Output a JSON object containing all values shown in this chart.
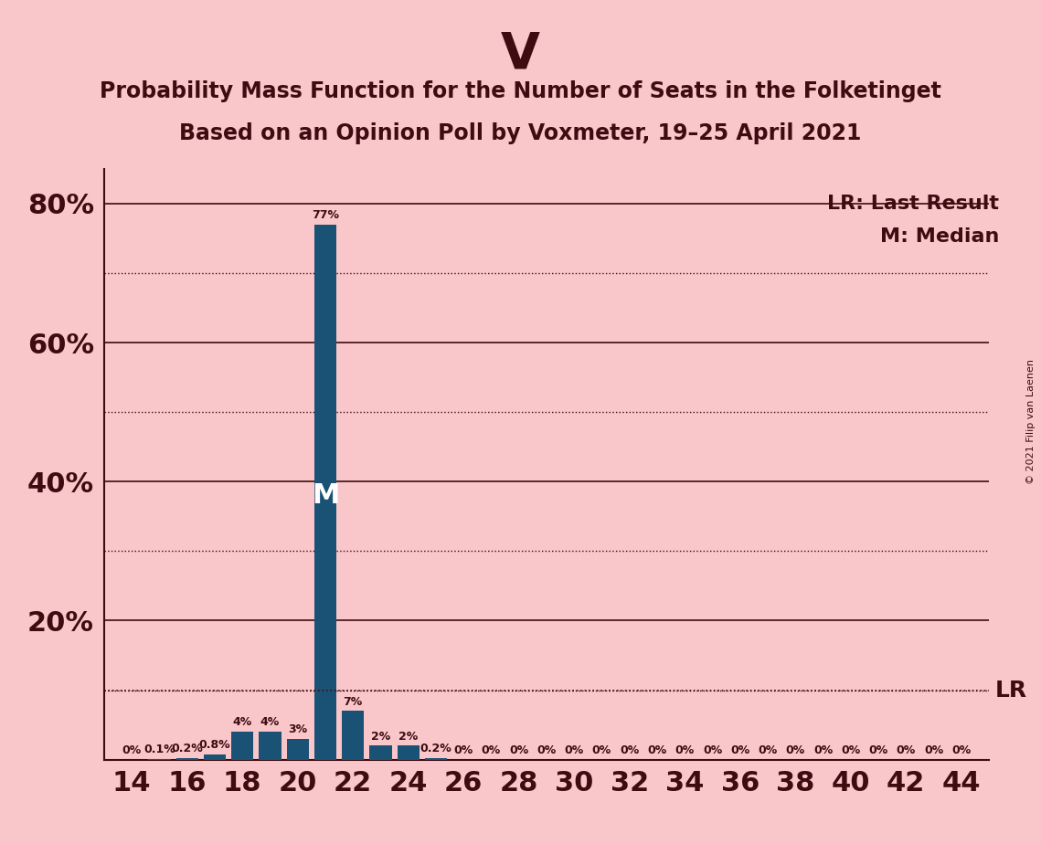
{
  "title_party": "V",
  "title_line1": "Probability Mass Function for the Number of Seats in the Folketinget",
  "title_line2": "Based on an Opinion Poll by Voxmeter, 19–25 April 2021",
  "copyright": "© 2021 Filip van Laenen",
  "seats": [
    14,
    15,
    16,
    17,
    18,
    19,
    20,
    21,
    22,
    23,
    24,
    25,
    26,
    27,
    28,
    29,
    30,
    31,
    32,
    33,
    34,
    35,
    36,
    37,
    38,
    39,
    40,
    41,
    42,
    43,
    44
  ],
  "probabilities": [
    0.0,
    0.1,
    0.2,
    0.8,
    4.0,
    4.0,
    3.0,
    77.0,
    7.0,
    2.0,
    2.0,
    0.2,
    0.0,
    0.0,
    0.0,
    0.0,
    0.0,
    0.0,
    0.0,
    0.0,
    0.0,
    0.0,
    0.0,
    0.0,
    0.0,
    0.0,
    0.0,
    0.0,
    0.0,
    0.0,
    0.0
  ],
  "bar_color": "#1a5276",
  "background_color": "#f9c6c9",
  "median_seat": 21,
  "lr_value": 10.0,
  "xlabel_seats": [
    14,
    16,
    18,
    20,
    22,
    24,
    26,
    28,
    30,
    32,
    34,
    36,
    38,
    40,
    42,
    44
  ],
  "ylim": [
    0,
    85
  ],
  "yticks": [
    20,
    40,
    60,
    80
  ],
  "ytick_labels": [
    "20%",
    "40%",
    "60%",
    "80%"
  ],
  "dotted_lines": [
    10,
    30,
    50,
    70
  ],
  "solid_lines": [
    0,
    20,
    40,
    60,
    80
  ],
  "bar_labels": {
    "14": "0%",
    "15": "0.1%",
    "16": "0.2%",
    "17": "0.8%",
    "18": "4%",
    "19": "4%",
    "20": "3%",
    "21": "77%",
    "22": "7%",
    "23": "2%",
    "24": "2%",
    "25": "0.2%",
    "26": "0%",
    "27": "0%",
    "28": "0%",
    "29": "0%",
    "30": "0%",
    "31": "0%",
    "32": "0%",
    "33": "0%",
    "34": "0%",
    "35": "0%",
    "36": "0%",
    "37": "0%",
    "38": "0%",
    "39": "0%",
    "40": "0%",
    "41": "0%",
    "42": "0%",
    "43": "0%",
    "44": "0%"
  },
  "text_color": "#3d0c11",
  "party_fontsize": 40,
  "title_fontsize": 17,
  "bar_label_fontsize": 9,
  "axis_tick_fontsize": 22,
  "legend_fontsize": 16,
  "median_label": "M",
  "lr_label": "LR"
}
